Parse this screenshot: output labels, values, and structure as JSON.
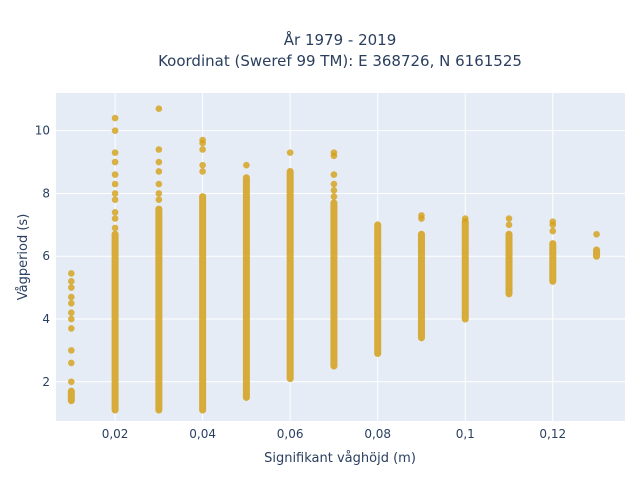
{
  "chart_data": {
    "type": "scatter",
    "title_line1": "År 1979 - 2019",
    "title_line2": "Koordinat (Sweref 99 TM): E 368726, N 6161525",
    "xlabel": "Signifikant våghöjd (m)",
    "ylabel": "Vågperiod (s)",
    "xlim": [
      0.0065,
      0.1365
    ],
    "ylim": [
      0.75,
      11.2
    ],
    "x_ticks": [
      0.02,
      0.04,
      0.06,
      0.08,
      0.1,
      0.12
    ],
    "x_tick_labels": [
      "0,02",
      "0,04",
      "0,06",
      "0,08",
      "0,1",
      "0,12"
    ],
    "y_ticks": [
      2,
      4,
      6,
      8,
      10
    ],
    "y_tick_labels": [
      "2",
      "4",
      "6",
      "8",
      "10"
    ],
    "grid": true,
    "marker_color": "#D4A017",
    "plot_bg": "#E5ECF6",
    "columns": [
      {
        "x": 0.01,
        "y_min": 1.4,
        "y_max": 1.7,
        "extra_y": [
          2.0,
          2.6,
          3.0,
          3.7,
          4.0,
          4.2,
          4.5,
          4.7,
          5.0,
          5.2,
          5.45
        ]
      },
      {
        "x": 0.02,
        "y_min": 1.1,
        "y_max": 6.7,
        "extra_y": [
          6.9,
          7.2,
          7.4,
          7.8,
          8.0,
          8.3,
          8.6,
          9.0,
          9.3,
          10.0,
          10.4
        ]
      },
      {
        "x": 0.03,
        "y_min": 1.1,
        "y_max": 7.5,
        "extra_y": [
          7.8,
          8.0,
          8.3,
          8.7,
          9.0,
          9.4,
          10.7
        ]
      },
      {
        "x": 0.04,
        "y_min": 1.1,
        "y_max": 7.9,
        "extra_y": [
          8.7,
          8.9,
          9.4,
          9.6,
          9.7
        ]
      },
      {
        "x": 0.05,
        "y_min": 1.5,
        "y_max": 8.5,
        "extra_y": [
          8.9
        ]
      },
      {
        "x": 0.06,
        "y_min": 2.1,
        "y_max": 8.7,
        "extra_y": [
          9.3
        ]
      },
      {
        "x": 0.07,
        "y_min": 2.5,
        "y_max": 7.7,
        "extra_y": [
          7.9,
          8.1,
          8.3,
          8.6,
          9.2,
          9.3
        ]
      },
      {
        "x": 0.08,
        "y_min": 2.9,
        "y_max": 7.0,
        "extra_y": []
      },
      {
        "x": 0.09,
        "y_min": 3.4,
        "y_max": 6.7,
        "extra_y": [
          7.2,
          7.3
        ]
      },
      {
        "x": 0.1,
        "y_min": 4.0,
        "y_max": 7.1,
        "extra_y": [
          7.2
        ]
      },
      {
        "x": 0.11,
        "y_min": 4.8,
        "y_max": 6.7,
        "extra_y": [
          7.0,
          7.2
        ]
      },
      {
        "x": 0.12,
        "y_min": 5.2,
        "y_max": 6.4,
        "extra_y": [
          6.8,
          7.0,
          7.1
        ]
      },
      {
        "x": 0.13,
        "y_min": 6.0,
        "y_max": 6.2,
        "extra_y": [
          6.7
        ]
      }
    ]
  }
}
